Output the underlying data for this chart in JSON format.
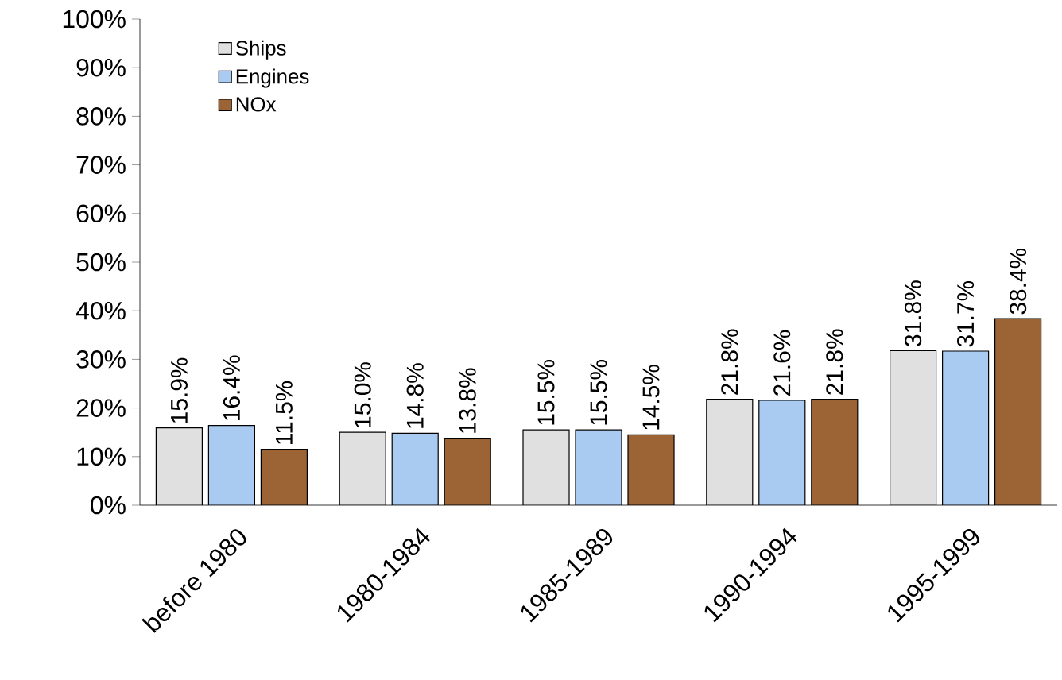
{
  "chart_data": {
    "type": "bar",
    "categories": [
      "before 1980",
      "1980-1984",
      "1985-1989",
      "1990-1994",
      "1995-1999"
    ],
    "series": [
      {
        "name": "Ships",
        "color": "#e0e0e0",
        "values": [
          15.9,
          15.0,
          15.5,
          21.8,
          31.8
        ],
        "value_labels": [
          "15.9%",
          "15.0%",
          "15.5%",
          "21.8%",
          "31.8%"
        ]
      },
      {
        "name": "Engines",
        "color": "#a9cbf2",
        "values": [
          16.4,
          14.8,
          15.5,
          21.6,
          31.7
        ],
        "value_labels": [
          "16.4%",
          "14.8%",
          "15.5%",
          "21.6%",
          "31.7%"
        ]
      },
      {
        "name": "NOx",
        "color": "#9c6434",
        "values": [
          11.5,
          13.8,
          14.5,
          21.8,
          38.4
        ],
        "value_labels": [
          "11.5%",
          "13.8%",
          "14.5%",
          "21.8%",
          "38.4%"
        ]
      }
    ],
    "ylim": [
      0,
      100
    ],
    "yticks": [
      {
        "value": 0,
        "label": "0%"
      },
      {
        "value": 10,
        "label": "10%"
      },
      {
        "value": 20,
        "label": "20%"
      },
      {
        "value": 30,
        "label": "30%"
      },
      {
        "value": 40,
        "label": "40%"
      },
      {
        "value": 50,
        "label": "50%"
      },
      {
        "value": 60,
        "label": "60%"
      },
      {
        "value": 70,
        "label": "70%"
      },
      {
        "value": 80,
        "label": "80%"
      },
      {
        "value": 90,
        "label": "90%"
      },
      {
        "value": 100,
        "label": "100%"
      }
    ],
    "legend": "top left",
    "grid": false
  }
}
